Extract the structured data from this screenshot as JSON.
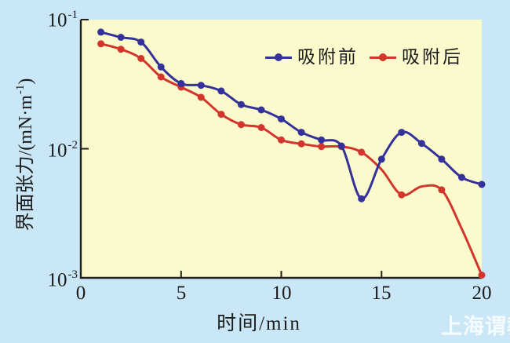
{
  "colors": {
    "outer_bg": "#c9e7f7",
    "plot_bg": "#fbfacd",
    "axis": "#222222",
    "series_before": "#34319b",
    "series_after": "#d2352b",
    "watermark_text": "#ffffff"
  },
  "axes": {
    "x_tick_labels": [
      "0",
      "5",
      "10",
      "15",
      "20"
    ],
    "y_tick_labels": [
      {
        "base": "10",
        "exp": "-1"
      },
      {
        "base": "10",
        "exp": "-2"
      },
      {
        "base": "10",
        "exp": "-3"
      }
    ],
    "x_title": "时间/min",
    "y_title": {
      "pre": "界面张力/(mN·m",
      "sup": "-1",
      "post": ")"
    }
  },
  "watermark": {
    "text": "上海谓教"
  },
  "chart_data": {
    "type": "line",
    "xlabel": "时间/min",
    "ylabel": "界面张力/(mN·m⁻¹)",
    "x_range": [
      0,
      20
    ],
    "y_range": [
      0.001,
      0.1
    ],
    "y_scale": "log",
    "x_ticks": [
      0,
      5,
      10,
      15,
      20
    ],
    "y_ticks": [
      0.1,
      0.01,
      0.001
    ],
    "grid": false,
    "legend_position": "top-inside",
    "x": [
      1,
      2,
      3,
      4,
      5,
      6,
      7,
      8,
      9,
      10,
      11,
      12,
      13,
      14,
      15,
      16,
      17,
      18,
      19,
      20
    ],
    "series": [
      {
        "name": "吸附前",
        "color": "#34319b",
        "values": [
          0.08,
          0.073,
          0.067,
          0.043,
          0.032,
          0.031,
          0.028,
          0.022,
          0.02,
          0.017,
          0.0134,
          0.0117,
          0.0105,
          0.0041,
          0.0083,
          0.0134,
          0.011,
          0.0083,
          0.006,
          0.0053
        ],
        "marker_skip_x": []
      },
      {
        "name": "吸附后",
        "color": "#d2352b",
        "values": [
          0.065,
          0.059,
          0.05,
          0.036,
          0.03,
          0.025,
          0.0185,
          0.0154,
          0.0146,
          0.0117,
          0.0109,
          0.0104,
          0.0104,
          0.0094,
          0.0069,
          0.0044,
          0.0051,
          0.0048,
          0.0024,
          0.00105
        ],
        "marker_skip_x": [
          15,
          17,
          19
        ]
      }
    ]
  }
}
